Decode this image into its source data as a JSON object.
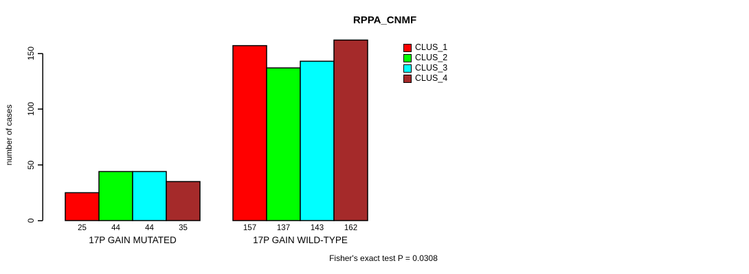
{
  "chart_data": {
    "type": "bar",
    "title": "RPPA_CNMF",
    "ylabel": "number of cases",
    "xlabel": "",
    "ylim": [
      0,
      150
    ],
    "yticks": [
      0,
      50,
      100,
      150
    ],
    "grid": false,
    "categories": [
      "17P GAIN MUTATED",
      "17P GAIN WILD-TYPE"
    ],
    "series": [
      {
        "name": "CLUS_1",
        "color": "#ff0000",
        "values": [
          25,
          157
        ]
      },
      {
        "name": "CLUS_2",
        "color": "#00ff00",
        "values": [
          44,
          137
        ]
      },
      {
        "name": "CLUS_3",
        "color": "#00ffff",
        "values": [
          44,
          143
        ]
      },
      {
        "name": "CLUS_4",
        "color": "#a52a2a",
        "values": [
          35,
          162
        ]
      }
    ],
    "show_bar_values": true,
    "legend_position": "top-right",
    "annotation": "Fisher's exact test P = 0.0308",
    "background": "#ffffff",
    "text_color": "#000000",
    "axis_color": "#000000"
  }
}
